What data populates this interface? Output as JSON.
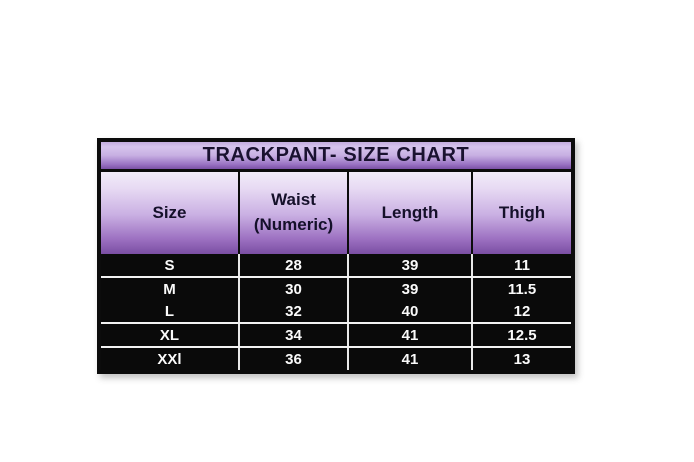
{
  "chart_data": {
    "type": "table",
    "title": "TRACKPANT- SIZE CHART",
    "columns": [
      "Size",
      "Waist (Numeric)",
      "Length",
      "Thigh"
    ],
    "rows": [
      [
        "S",
        "28",
        "39",
        "11"
      ],
      [
        "M",
        "30",
        "39",
        "11.5"
      ],
      [
        "L",
        "32",
        "40",
        "12"
      ],
      [
        "XL",
        "34",
        "41",
        "12.5"
      ],
      [
        "XXl",
        "36",
        "41",
        "13"
      ]
    ]
  },
  "colors": {
    "title_gradient_top": "#c3acdf",
    "title_gradient_bottom": "#7b51a6",
    "header_gradient_top": "#f2ecf9",
    "header_gradient_bottom": "#7a4ea3",
    "data_row_background": "#0a0a0a",
    "data_text": "#fafafa",
    "title_text": "#1a1230",
    "border": "#0c0c0c",
    "row_separator": "#f2f2f2"
  }
}
